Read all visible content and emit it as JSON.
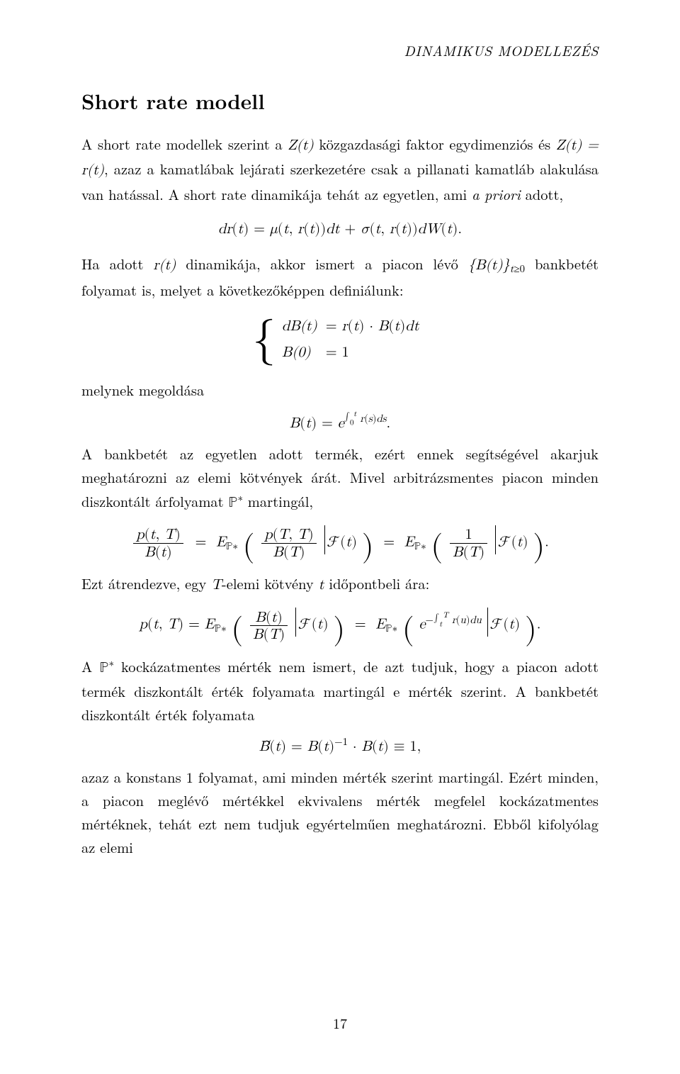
{
  "document": {
    "running_head": "DINAMIKUS MODELLEZÉS",
    "section_title": "Short rate modell",
    "page_number": "17",
    "body_font_color": "#000000",
    "background_color": "#ffffff",
    "body_font_size_pt": 12,
    "title_font_size_pt": 17
  },
  "text": {
    "p1a": "A short rate modellek szerint a ",
    "p1b": " közgazdasági faktor egydimenziós és ",
    "p1c": ", azaz a kamatlábak lejárati szerkezetére csak a pillanati kamatláb alakulása van hatással. A short rate dinamikája tehát az egyetlen, ami ",
    "p1_apriori": "a priori",
    "p1d": " adott,",
    "p2a": "Ha adott ",
    "p2b": " dinamikája, akkor ismert a piacon lévő ",
    "p2c": " bankbetét folyamat is, melyet a következőképpen definiálunk:",
    "p3": "melynek megoldása",
    "p4": "A bankbetét az egyetlen adott termék, ezért ennek segítségével akarjuk meghatározni az elemi kötvények árát. Mivel arbitrázsmentes piacon minden diszkontált árfolyamat ",
    "p4b": " martingál,",
    "p5a": "Ezt átrendezve, egy ",
    "p5b": "-elemi kötvény ",
    "p5c": " időpontbeli ára:",
    "p6a": "A ",
    "p6b": " kockázatmentes mérték nem ismert, de azt tudjuk, hogy a piacon adott termék diszkontált érték folyamata martingál e mérték szerint. A bankbetét diszkontált érték folyamata",
    "p7": "azaz a konstans 1 folyamat, ami minden mérték szerint martingál. Ezért minden, a piacon meglévő mértékkel ekvivalens mérték megfelel kockázatmentes mértéknek, tehát ezt nem tudjuk egyértelműen meghatározni. Ebből kifolyólag az elemi"
  },
  "math": {
    "Zt": "Z(t)",
    "Zt_eq_rt": "Z(t) = r(t)",
    "rt": "r(t)",
    "Bt_set": "{B(t)}",
    "tge0": "t≥0",
    "T": "T",
    "t": "t",
    "Pstar": "ℙ*",
    "eq1_lhs": "dr(t) = ",
    "eq1_rhs": "μ(t, r(t))dt + σ(t, r(t))dW(t).",
    "case1_l": "dB(t)",
    "case1_r": "= r(t) · B(t)dt",
    "case2_l": "B(0)",
    "case2_r": "= 1",
    "sol_lhs": "B(t) = e",
    "sol_exp_int": "∫",
    "sol_exp_lo": "0",
    "sol_exp_hi": "t",
    "sol_exp_body": " r(s)ds",
    "frac_pt_num": "p(t, T)",
    "frac_pt_den": "B(t)",
    "Epstar": "E",
    "Epstar_sub": "ℙ*",
    "frac_pTT_num": "p(T, T)",
    "frac_pTT_den": "B(T)",
    "Ft": "ℱ(t)",
    "one": "1",
    "frac_BT_den": "B(T)",
    "eq5_lhs": "p(t, T) = ",
    "frac_Bt_num": "B(t)",
    "frac_Bt_den": "B(T)",
    "exp_neg": "e",
    "exp_neg_sup_a": "−∫",
    "exp_neg_sup_lo": "t",
    "exp_neg_sup_hi": "T",
    "exp_neg_sup_b": " r(u)du",
    "eq6": "B̃(t) = B(t)⁻¹ · B(t) ≡ 1,"
  }
}
